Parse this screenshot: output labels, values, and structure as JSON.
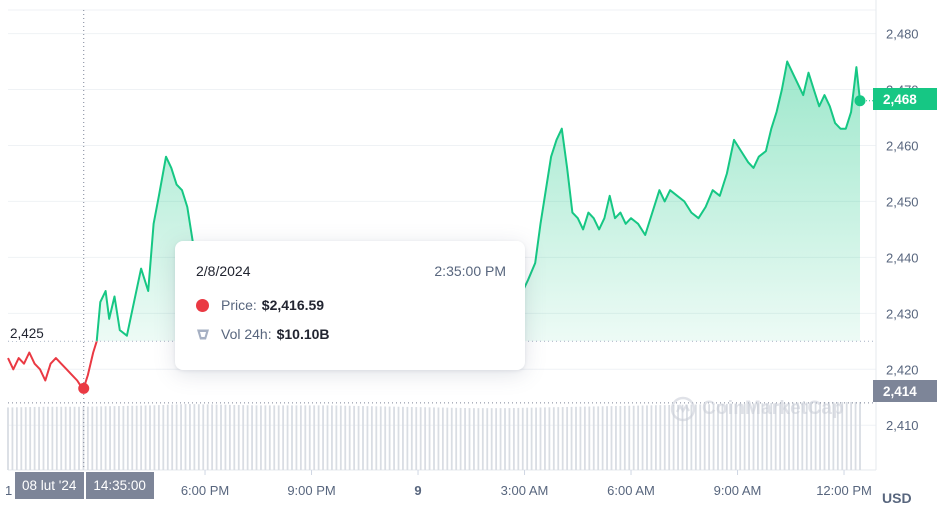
{
  "chart_data": {
    "type": "line",
    "ylim": [
      2402,
      2486
    ],
    "y_ticks": [
      "2,480",
      "2,470",
      "2,460",
      "2,450",
      "2,440",
      "2,430",
      "2,420",
      "2,410"
    ],
    "x_ticks": [
      {
        "label": "6:00 PM",
        "h": 18
      },
      {
        "label": "9:00 PM",
        "h": 21
      },
      {
        "label": "9",
        "h": 24
      },
      {
        "label": "3:00 AM",
        "h": 27
      },
      {
        "label": "6:00 AM",
        "h": 30
      },
      {
        "label": "9:00 AM",
        "h": 33
      },
      {
        "label": "12:00 PM",
        "h": 36
      }
    ],
    "x_range_hours": [
      12.45,
      36.45
    ],
    "x_unit": "hours since 00:00 on 2/8/2024",
    "open_price": 2425,
    "open_price_label": "2,425",
    "last_price": 2468,
    "last_price_label": "2,468",
    "crosshair_price": 2414,
    "crosshair_price_label": "2,414",
    "crosshair_hour": 14.5833,
    "grid": true,
    "up_color": "#16c784",
    "down_color": "#ea3943",
    "volume_color": "#d9dde3",
    "price_series": [
      [
        12.45,
        2422
      ],
      [
        12.6,
        2420
      ],
      [
        12.75,
        2422
      ],
      [
        12.9,
        2421
      ],
      [
        13.05,
        2423
      ],
      [
        13.2,
        2421
      ],
      [
        13.35,
        2420
      ],
      [
        13.5,
        2418
      ],
      [
        13.65,
        2421
      ],
      [
        13.8,
        2422
      ],
      [
        13.95,
        2421
      ],
      [
        14.1,
        2420
      ],
      [
        14.25,
        2419
      ],
      [
        14.4,
        2418
      ],
      [
        14.5,
        2417
      ],
      [
        14.58,
        2416.59
      ],
      [
        14.7,
        2419
      ],
      [
        14.85,
        2423
      ],
      [
        14.95,
        2425
      ],
      [
        15.05,
        2432
      ],
      [
        15.2,
        2434
      ],
      [
        15.3,
        2429
      ],
      [
        15.45,
        2433
      ],
      [
        15.6,
        2427
      ],
      [
        15.8,
        2426
      ],
      [
        16.0,
        2432
      ],
      [
        16.2,
        2438
      ],
      [
        16.4,
        2434
      ],
      [
        16.55,
        2446
      ],
      [
        16.7,
        2451
      ],
      [
        16.9,
        2458
      ],
      [
        17.05,
        2456
      ],
      [
        17.2,
        2453
      ],
      [
        17.35,
        2452
      ],
      [
        17.5,
        2449
      ],
      [
        17.65,
        2443
      ],
      [
        17.8,
        2436
      ],
      [
        17.95,
        2430
      ],
      [
        18.1,
        2426
      ],
      [
        18.4,
        2428
      ],
      [
        18.8,
        2430
      ],
      [
        19.4,
        2431
      ],
      [
        20.0,
        2432
      ],
      [
        20.6,
        2431
      ],
      [
        21.2,
        2432
      ],
      [
        21.8,
        2433
      ],
      [
        22.4,
        2432
      ],
      [
        23.0,
        2433
      ],
      [
        23.6,
        2432
      ],
      [
        24.2,
        2431
      ],
      [
        24.8,
        2430
      ],
      [
        25.4,
        2429
      ],
      [
        26.0,
        2427
      ],
      [
        26.4,
        2425
      ],
      [
        26.6,
        2425
      ],
      [
        26.8,
        2427
      ],
      [
        26.95,
        2434
      ],
      [
        27.1,
        2436
      ],
      [
        27.3,
        2439
      ],
      [
        27.45,
        2446
      ],
      [
        27.6,
        2452
      ],
      [
        27.75,
        2458
      ],
      [
        27.9,
        2461
      ],
      [
        28.05,
        2463
      ],
      [
        28.2,
        2456
      ],
      [
        28.35,
        2448
      ],
      [
        28.5,
        2447
      ],
      [
        28.65,
        2445
      ],
      [
        28.8,
        2448
      ],
      [
        28.95,
        2447
      ],
      [
        29.1,
        2445
      ],
      [
        29.25,
        2447
      ],
      [
        29.4,
        2451
      ],
      [
        29.55,
        2447
      ],
      [
        29.7,
        2448
      ],
      [
        29.85,
        2446
      ],
      [
        30.0,
        2447
      ],
      [
        30.2,
        2446
      ],
      [
        30.4,
        2444
      ],
      [
        30.6,
        2448
      ],
      [
        30.8,
        2452
      ],
      [
        30.95,
        2450
      ],
      [
        31.1,
        2452
      ],
      [
        31.3,
        2451
      ],
      [
        31.5,
        2450
      ],
      [
        31.7,
        2448
      ],
      [
        31.9,
        2447
      ],
      [
        32.1,
        2449
      ],
      [
        32.3,
        2452
      ],
      [
        32.5,
        2451
      ],
      [
        32.7,
        2455
      ],
      [
        32.9,
        2461
      ],
      [
        33.1,
        2459
      ],
      [
        33.3,
        2457
      ],
      [
        33.45,
        2456
      ],
      [
        33.6,
        2458
      ],
      [
        33.8,
        2459
      ],
      [
        33.95,
        2463
      ],
      [
        34.1,
        2466
      ],
      [
        34.25,
        2470
      ],
      [
        34.4,
        2475
      ],
      [
        34.55,
        2473
      ],
      [
        34.7,
        2471
      ],
      [
        34.85,
        2469
      ],
      [
        35.0,
        2473
      ],
      [
        35.15,
        2470
      ],
      [
        35.3,
        2467
      ],
      [
        35.45,
        2469
      ],
      [
        35.6,
        2467
      ],
      [
        35.75,
        2464
      ],
      [
        35.9,
        2463
      ],
      [
        36.05,
        2463
      ],
      [
        36.2,
        2466
      ],
      [
        36.35,
        2474
      ],
      [
        36.45,
        2468
      ]
    ],
    "volume_series": [
      [
        12.45,
        0.92
      ],
      [
        13.5,
        0.93
      ],
      [
        14.5,
        0.93
      ],
      [
        15.5,
        0.94
      ],
      [
        16.5,
        0.95
      ],
      [
        17.5,
        0.97
      ],
      [
        18.5,
        0.96
      ],
      [
        19.5,
        0.95
      ],
      [
        20.5,
        0.95
      ],
      [
        21.5,
        0.95
      ],
      [
        22.5,
        0.94
      ],
      [
        23.5,
        0.93
      ],
      [
        24.5,
        0.92
      ],
      [
        25.5,
        0.91
      ],
      [
        26.5,
        0.91
      ],
      [
        27.5,
        0.92
      ],
      [
        28.5,
        0.93
      ],
      [
        29.5,
        0.94
      ],
      [
        30.5,
        0.95
      ],
      [
        31.5,
        0.96
      ],
      [
        32.5,
        0.97
      ],
      [
        33.5,
        0.98
      ],
      [
        34.5,
        0.99
      ],
      [
        35.5,
        1.0
      ],
      [
        36.45,
        1.0
      ]
    ]
  },
  "tooltip": {
    "date": "2/8/2024",
    "time": "2:35:00 PM",
    "price_label": "Price:",
    "price_value": "$2,416.59",
    "volume_label": "Vol 24h:",
    "volume_value": "$10.10B"
  },
  "crosshair": {
    "date_label": "08 lut '24",
    "time_label": "14:35:00"
  },
  "currency_label": "USD",
  "watermark_text": "CoinMarketCap",
  "partial_first_tick": "1"
}
